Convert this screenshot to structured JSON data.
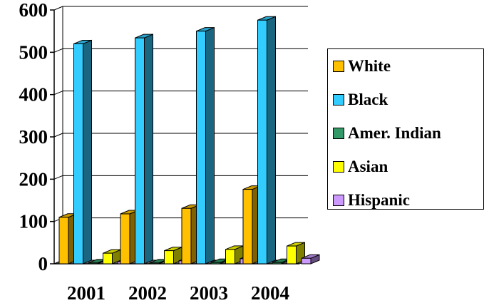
{
  "chart_data": {
    "type": "bar",
    "categories": [
      "2001",
      "2002",
      "2003",
      "2004"
    ],
    "series": [
      {
        "name": "White",
        "values": [
          110,
          118,
          131,
          176
        ],
        "color": "#FFC000"
      },
      {
        "name": "Black",
        "values": [
          520,
          534,
          550,
          576
        ],
        "color": "#33CCFF"
      },
      {
        "name": "Amer. Indian",
        "values": [
          2,
          2,
          3,
          3
        ],
        "color": "#339966"
      },
      {
        "name": "Asian",
        "values": [
          25,
          31,
          34,
          42
        ],
        "color": "#FFFF00"
      },
      {
        "name": "Hispanic",
        "values": [
          5,
          7,
          12,
          13
        ],
        "color": "#CC99FF"
      }
    ],
    "yticks": [
      0,
      100,
      200,
      300,
      400,
      500,
      600
    ],
    "ylim": [
      0,
      600
    ],
    "grid": true,
    "legend_position": "right",
    "three_d": true
  }
}
